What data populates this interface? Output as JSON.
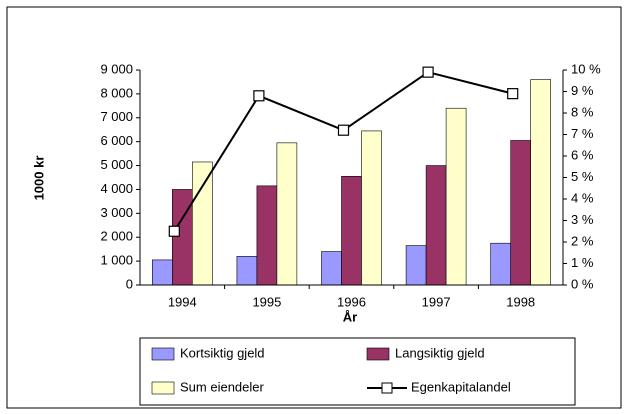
{
  "chart_data": {
    "type": "bar",
    "xlabel": "År",
    "ylabel": "1000 kr",
    "categories": [
      "1994",
      "1995",
      "1996",
      "1997",
      "1998"
    ],
    "series": [
      {
        "name": "Kortsiktig gjeld",
        "color": "#9999ff",
        "values": [
          1050,
          1200,
          1400,
          1650,
          1750
        ]
      },
      {
        "name": "Langsiktig gjeld",
        "color": "#993366",
        "values": [
          4000,
          4150,
          4550,
          5000,
          6050
        ]
      },
      {
        "name": "Sum eiendeler",
        "color": "#ffffcc",
        "values": [
          5150,
          5950,
          6450,
          7400,
          8600
        ]
      },
      {
        "name": "Egenkapitalandel",
        "color": "#000000",
        "type": "line",
        "axis": "y2",
        "values": [
          2.5,
          8.8,
          7.2,
          9.9,
          8.9
        ]
      }
    ],
    "ylim": [
      0,
      9000
    ],
    "yticks": [
      0,
      {
        "value": 1000,
        "label": "1 000"
      },
      {
        "value": 2000,
        "label": "2 000"
      },
      {
        "value": 3000,
        "label": "3 000"
      },
      {
        "value": 4000,
        "label": "4 000"
      },
      {
        "value": 5000,
        "label": "5 000"
      },
      {
        "value": 6000,
        "label": "6 000"
      },
      {
        "value": 7000,
        "label": "7 000"
      },
      {
        "value": 8000,
        "label": "8 000"
      },
      {
        "value": 9000,
        "label": "9 000"
      }
    ],
    "y2lim": [
      0,
      10
    ],
    "y2ticks": [
      {
        "value": 0,
        "label": "0 %"
      },
      {
        "value": 1,
        "label": "1 %"
      },
      {
        "value": 2,
        "label": "2 %"
      },
      {
        "value": 3,
        "label": "3 %"
      },
      {
        "value": 4,
        "label": "4 %"
      },
      {
        "value": 5,
        "label": "5 %"
      },
      {
        "value": 6,
        "label": "6 %"
      },
      {
        "value": 7,
        "label": "7 %"
      },
      {
        "value": 8,
        "label": "8 %"
      },
      {
        "value": 9,
        "label": "9 %"
      },
      {
        "value": 10,
        "label": "10 %"
      }
    ],
    "grid": false,
    "legend": "bottom"
  }
}
